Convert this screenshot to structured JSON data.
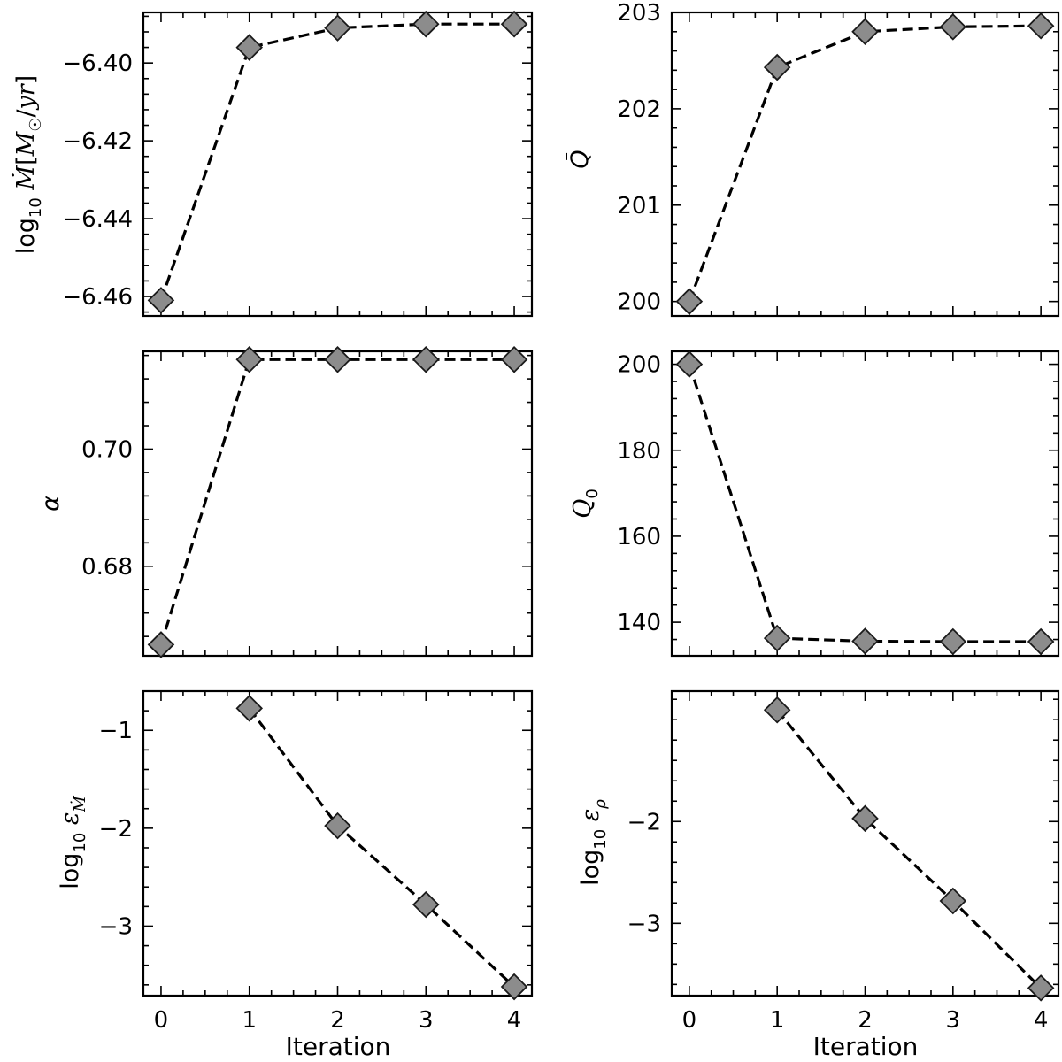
{
  "figure": {
    "xlabel": "Iteration"
  },
  "style": {
    "marker_fill": "#8c8c8c",
    "marker_edge": "#1a1a1a",
    "line_color": "#000000"
  },
  "chart_data": [
    {
      "type": "line",
      "panel": "top-left",
      "ylabel": "log10 Ṁ[M☉/yr]",
      "x": [
        0,
        1,
        2,
        3,
        4
      ],
      "y": [
        -6.461,
        -6.396,
        -6.391,
        -6.39,
        -6.39
      ],
      "ylim": [
        -6.465,
        -6.387
      ],
      "yticks": [
        -6.46,
        -6.44,
        -6.42,
        -6.4
      ],
      "ytick_labels": [
        "−6.46",
        "−6.44",
        "−6.42",
        "−6.40"
      ],
      "xticks": [
        0,
        1,
        2,
        3,
        4
      ],
      "xlim": [
        -0.2,
        4.2
      ],
      "show_xtick_labels": false,
      "line_style": "dashed",
      "marker": "diamond",
      "grid": false
    },
    {
      "type": "line",
      "panel": "top-right",
      "ylabel": "Q̄",
      "x": [
        0,
        1,
        2,
        3,
        4
      ],
      "y": [
        200.0,
        202.43,
        202.8,
        202.85,
        202.86
      ],
      "ylim": [
        199.85,
        203.0
      ],
      "yticks": [
        200,
        201,
        202,
        203
      ],
      "ytick_labels": [
        "200",
        "201",
        "202",
        "203"
      ],
      "xticks": [
        0,
        1,
        2,
        3,
        4
      ],
      "xlim": [
        -0.2,
        4.2
      ],
      "show_xtick_labels": false,
      "line_style": "dashed",
      "marker": "diamond",
      "grid": false
    },
    {
      "type": "line",
      "panel": "middle-left",
      "ylabel": "α",
      "x": [
        0,
        1,
        2,
        3,
        4
      ],
      "y": [
        0.6666,
        0.7153,
        0.7153,
        0.7153,
        0.7153
      ],
      "ylim": [
        0.6647,
        0.7167
      ],
      "yticks": [
        0.68,
        0.7
      ],
      "ytick_labels": [
        "0.68",
        "0.70"
      ],
      "xticks": [
        0,
        1,
        2,
        3,
        4
      ],
      "xlim": [
        -0.2,
        4.2
      ],
      "show_xtick_labels": false,
      "line_style": "dashed",
      "marker": "diamond",
      "grid": false
    },
    {
      "type": "line",
      "panel": "middle-right",
      "ylabel": "Q0",
      "x": [
        0,
        1,
        2,
        3,
        4
      ],
      "y": [
        200.0,
        136.3,
        135.6,
        135.5,
        135.5
      ],
      "ylim": [
        132.2,
        203.0
      ],
      "yticks": [
        140,
        160,
        180,
        200
      ],
      "ytick_labels": [
        "140",
        "160",
        "180",
        "200"
      ],
      "xticks": [
        0,
        1,
        2,
        3,
        4
      ],
      "xlim": [
        -0.2,
        4.2
      ],
      "show_xtick_labels": false,
      "line_style": "dashed",
      "marker": "diamond",
      "grid": false
    },
    {
      "type": "line",
      "panel": "bottom-left",
      "ylabel": "log10 εṀ",
      "x": [
        1,
        2,
        3,
        4
      ],
      "y": [
        -0.775,
        -1.975,
        -2.78,
        -3.62
      ],
      "ylim": [
        -3.71,
        -0.6
      ],
      "yticks": [
        -3,
        -2,
        -1
      ],
      "ytick_labels": [
        "−3",
        "−2",
        "−1"
      ],
      "xticks": [
        0,
        1,
        2,
        3,
        4
      ],
      "xtick_labels": [
        "0",
        "1",
        "2",
        "3",
        "4"
      ],
      "xlim": [
        -0.2,
        4.2
      ],
      "show_xtick_labels": true,
      "xlabel": "Iteration",
      "line_style": "dashed",
      "marker": "diamond",
      "grid": false
    },
    {
      "type": "line",
      "panel": "bottom-right",
      "ylabel": "log10 ερ",
      "x": [
        1,
        2,
        3,
        4
      ],
      "y": [
        -0.905,
        -1.97,
        -2.78,
        -3.635
      ],
      "ylim": [
        -3.71,
        -0.72
      ],
      "yticks": [
        -3,
        -2
      ],
      "ytick_labels": [
        "−3",
        "−2"
      ],
      "xticks": [
        0,
        1,
        2,
        3,
        4
      ],
      "xtick_labels": [
        "0",
        "1",
        "2",
        "3",
        "4"
      ],
      "xlim": [
        -0.2,
        4.2
      ],
      "show_xtick_labels": true,
      "xlabel": "Iteration",
      "line_style": "dashed",
      "marker": "diamond",
      "grid": false
    }
  ]
}
